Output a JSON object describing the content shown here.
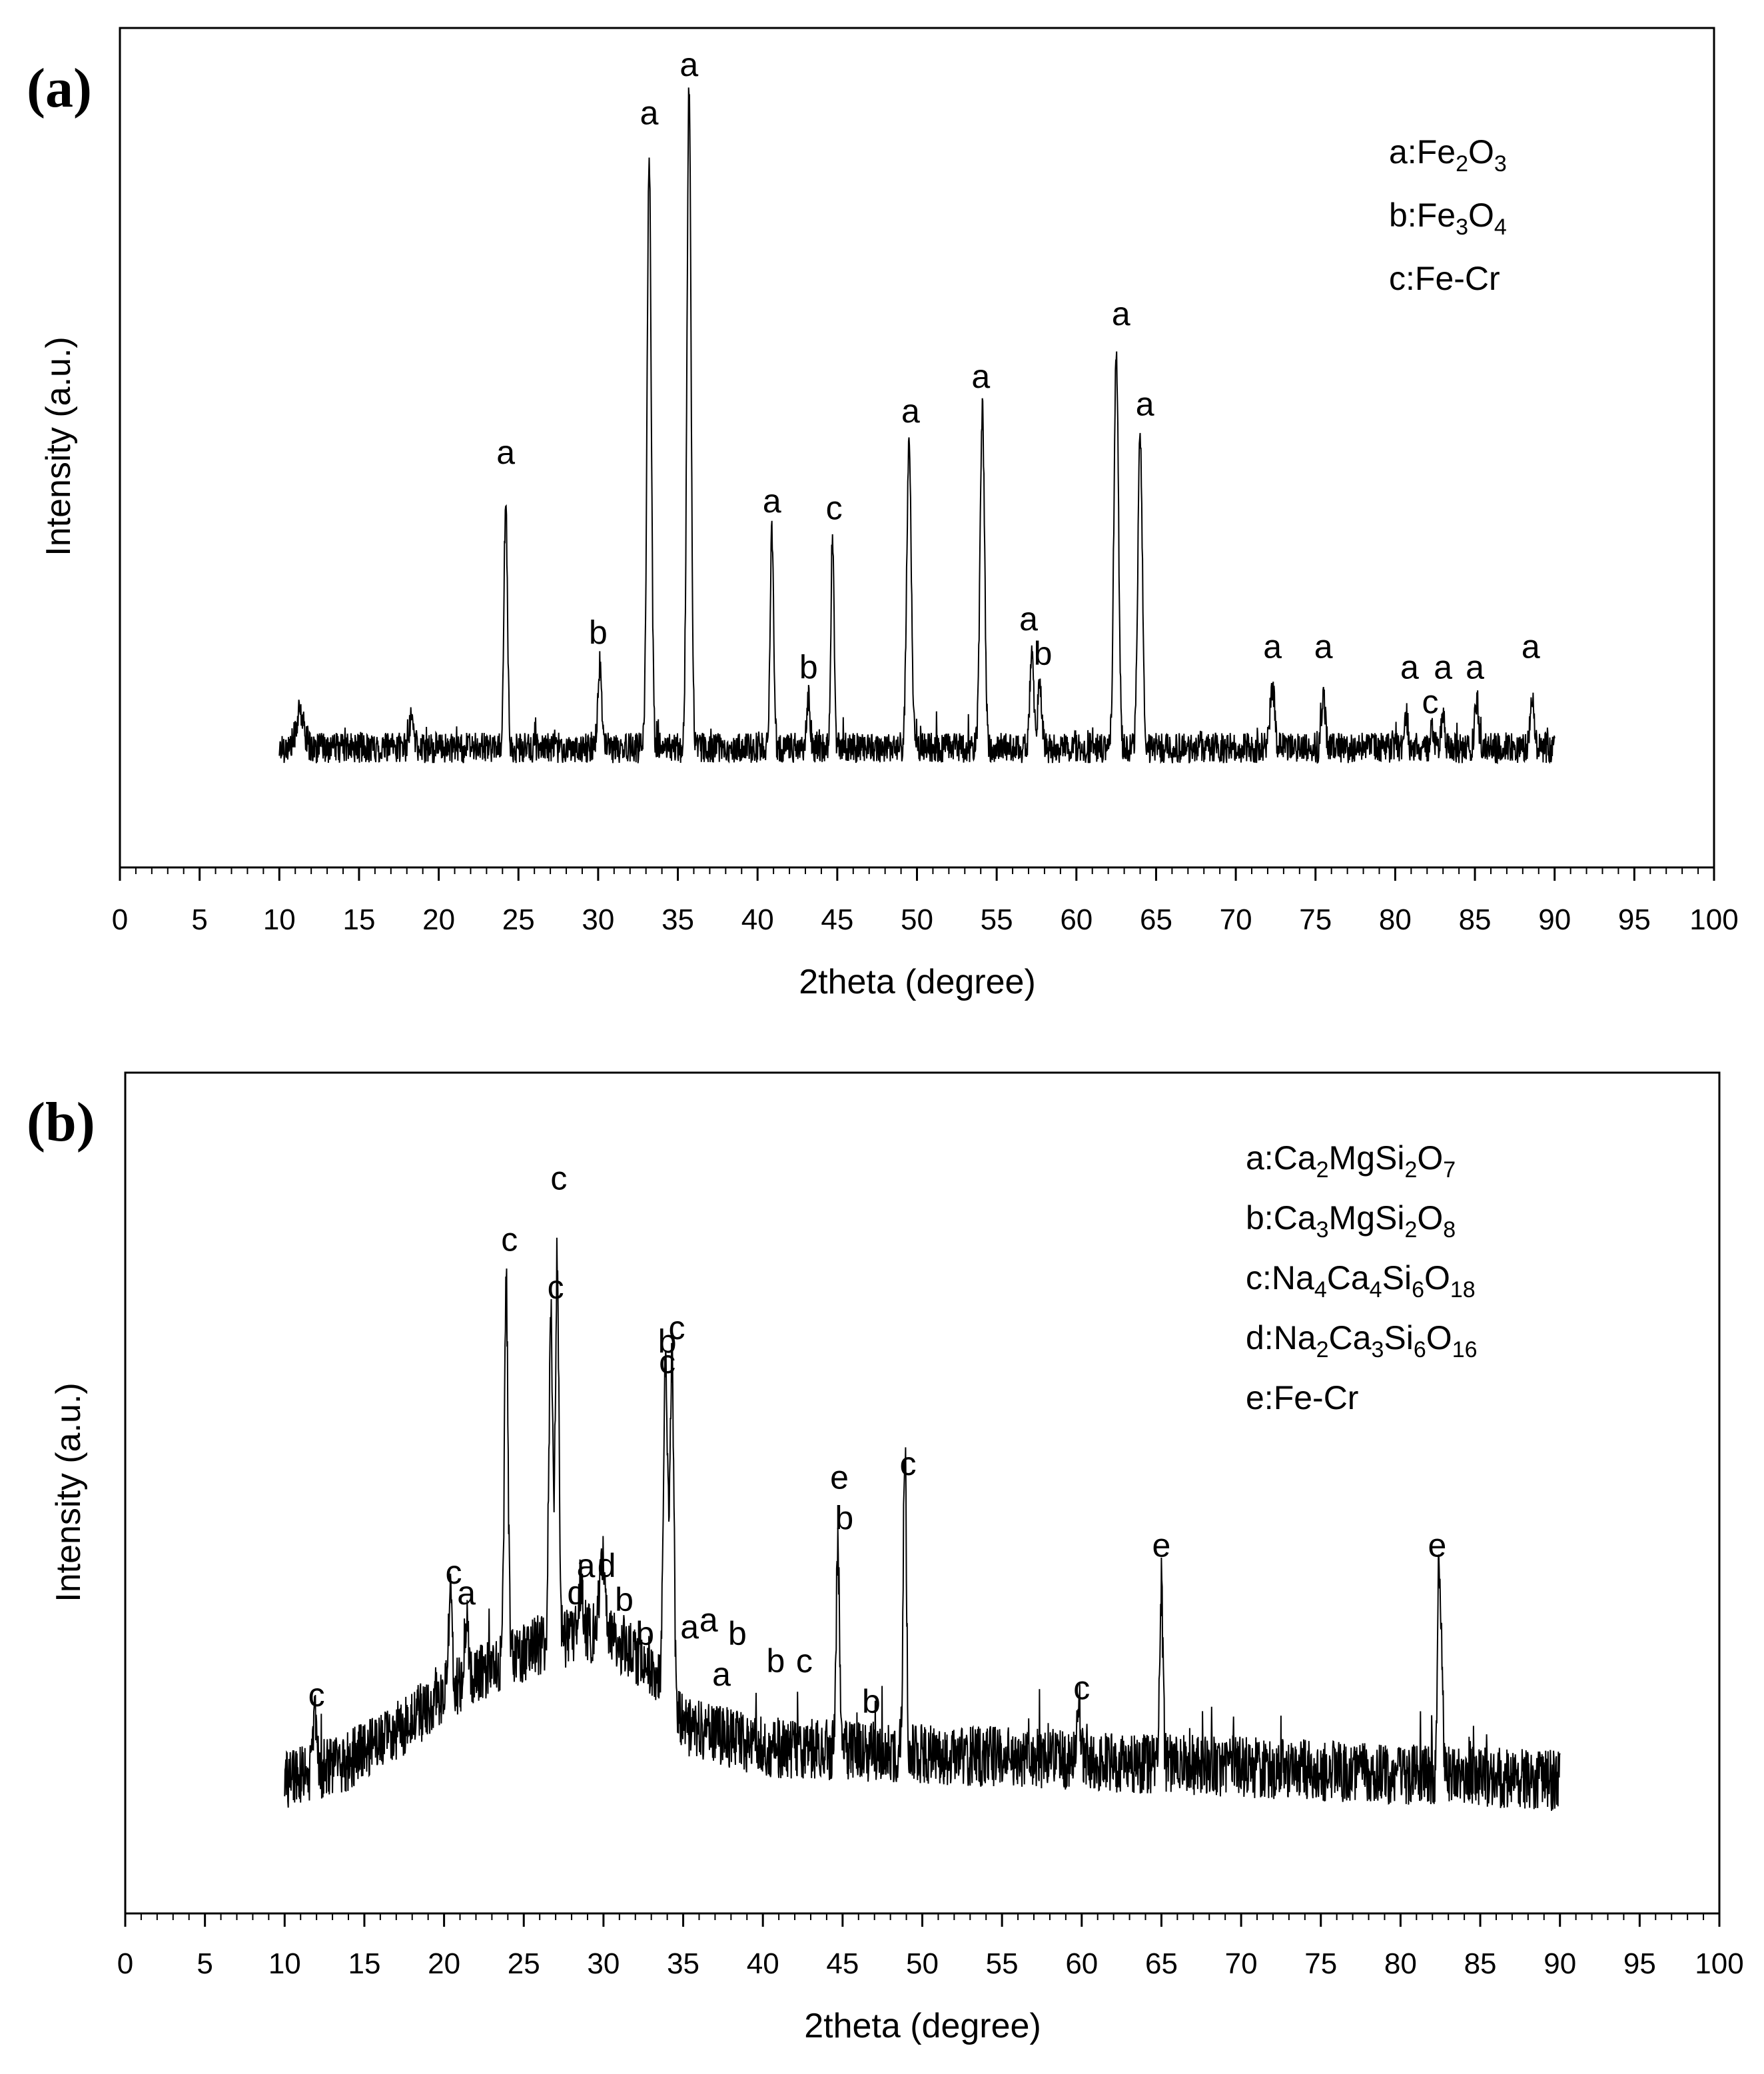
{
  "chart_data": [
    {
      "panel": "(a)",
      "type": "line",
      "xlabel": "2theta (degree)",
      "ylabel": "Intensity (a.u.)",
      "xlim": [
        0,
        100
      ],
      "x_ticks": [
        "0",
        "5",
        "10",
        "15",
        "20",
        "25",
        "30",
        "35",
        "40",
        "45",
        "50",
        "55",
        "60",
        "65",
        "70",
        "75",
        "80",
        "85",
        "90",
        "95",
        "100"
      ],
      "data_range": [
        10,
        90
      ],
      "baseline": 0.06,
      "noise": 0.022,
      "noise_seed": 17,
      "series": [
        {
          "name": "XRD pattern (a)",
          "peaks": [
            {
              "x": 11.3,
              "h": 0.05,
              "w": 0.25
            },
            {
              "x": 18.3,
              "h": 0.04,
              "w": 0.15
            },
            {
              "x": 24.2,
              "h": 0.35,
              "w": 0.11
            },
            {
              "x": 30.1,
              "h": 0.12,
              "w": 0.12
            },
            {
              "x": 33.2,
              "h": 0.86,
              "w": 0.13
            },
            {
              "x": 35.7,
              "h": 0.95,
              "w": 0.13
            },
            {
              "x": 40.9,
              "h": 0.31,
              "w": 0.11
            },
            {
              "x": 43.2,
              "h": 0.07,
              "w": 0.11
            },
            {
              "x": 44.7,
              "h": 0.3,
              "w": 0.1
            },
            {
              "x": 49.5,
              "h": 0.44,
              "w": 0.14
            },
            {
              "x": 54.1,
              "h": 0.49,
              "w": 0.14
            },
            {
              "x": 57.2,
              "h": 0.14,
              "w": 0.12
            },
            {
              "x": 57.7,
              "h": 0.1,
              "w": 0.12
            },
            {
              "x": 62.5,
              "h": 0.58,
              "w": 0.14
            },
            {
              "x": 64.0,
              "h": 0.46,
              "w": 0.14
            },
            {
              "x": 72.3,
              "h": 0.09,
              "w": 0.14
            },
            {
              "x": 75.5,
              "h": 0.07,
              "w": 0.12
            },
            {
              "x": 80.7,
              "h": 0.05,
              "w": 0.1
            },
            {
              "x": 82.3,
              "h": 0.03,
              "w": 0.1
            },
            {
              "x": 83.0,
              "h": 0.05,
              "w": 0.1
            },
            {
              "x": 85.1,
              "h": 0.07,
              "w": 0.12
            },
            {
              "x": 88.6,
              "h": 0.08,
              "w": 0.12
            }
          ]
        }
      ],
      "annotations": [
        {
          "text": "a",
          "x": 24.2,
          "y": 0.47
        },
        {
          "text": "b",
          "x": 30.0,
          "y": 0.21
        },
        {
          "text": "a",
          "x": 33.2,
          "y": 0.96
        },
        {
          "text": "a",
          "x": 35.7,
          "y": 1.03
        },
        {
          "text": "a",
          "x": 40.9,
          "y": 0.4
        },
        {
          "text": "c",
          "x": 44.8,
          "y": 0.39
        },
        {
          "text": "b",
          "x": 43.2,
          "y": 0.16
        },
        {
          "text": "a",
          "x": 49.6,
          "y": 0.53
        },
        {
          "text": "a",
          "x": 54.0,
          "y": 0.58
        },
        {
          "text": "a",
          "x": 57.0,
          "y": 0.23
        },
        {
          "text": "b",
          "x": 57.9,
          "y": 0.18
        },
        {
          "text": "a",
          "x": 62.8,
          "y": 0.67
        },
        {
          "text": "a",
          "x": 64.3,
          "y": 0.54
        },
        {
          "text": "a",
          "x": 72.3,
          "y": 0.19
        },
        {
          "text": "a",
          "x": 75.5,
          "y": 0.19
        },
        {
          "text": "a",
          "x": 80.9,
          "y": 0.16
        },
        {
          "text": "c",
          "x": 82.2,
          "y": 0.11
        },
        {
          "text": "a",
          "x": 83.0,
          "y": 0.16
        },
        {
          "text": "a",
          "x": 85.0,
          "y": 0.16
        },
        {
          "text": "a",
          "x": 88.5,
          "y": 0.19
        }
      ],
      "legend": {
        "position": "top-right",
        "entries": [
          {
            "key": "a:",
            "formula": [
              [
                "Fe",
                ""
              ],
              [
                "2",
                "sub"
              ],
              [
                "O",
                ""
              ],
              [
                "3",
                "sub"
              ]
            ]
          },
          {
            "key": "b:",
            "formula": [
              [
                "Fe",
                ""
              ],
              [
                "3",
                "sub"
              ],
              [
                "O",
                ""
              ],
              [
                "4",
                "sub"
              ]
            ]
          },
          {
            "key": "c:",
            "formula": [
              [
                "Fe-Cr",
                ""
              ]
            ]
          }
        ]
      }
    },
    {
      "panel": "(b)",
      "type": "line",
      "xlabel": "2theta (degree)",
      "ylabel": "Intensity (a.u.)",
      "xlim": [
        0,
        100
      ],
      "x_ticks": [
        "0",
        "5",
        "10",
        "15",
        "20",
        "25",
        "30",
        "35",
        "40",
        "45",
        "50",
        "55",
        "60",
        "65",
        "70",
        "75",
        "80",
        "85",
        "90",
        "95",
        "100"
      ],
      "data_range": [
        10,
        90
      ],
      "background": [
        [
          10,
          0.1
        ],
        [
          14,
          0.13
        ],
        [
          18,
          0.19
        ],
        [
          22,
          0.26
        ],
        [
          26,
          0.3
        ],
        [
          30,
          0.32
        ],
        [
          33,
          0.27
        ],
        [
          35,
          0.18
        ],
        [
          40,
          0.15
        ],
        [
          50,
          0.14
        ],
        [
          60,
          0.13
        ],
        [
          70,
          0.12
        ],
        [
          80,
          0.11
        ],
        [
          90,
          0.1
        ]
      ],
      "noise": 0.045,
      "noise_seed": 29,
      "series": [
        {
          "name": "XRD pattern (b)",
          "peaks": [
            {
              "x": 11.9,
              "h": 0.1,
              "w": 0.1
            },
            {
              "x": 20.4,
              "h": 0.14,
              "w": 0.12
            },
            {
              "x": 21.4,
              "h": 0.09,
              "w": 0.12
            },
            {
              "x": 23.9,
              "h": 0.55,
              "w": 0.11
            },
            {
              "x": 26.7,
              "h": 0.47,
              "w": 0.12
            },
            {
              "x": 27.1,
              "h": 0.56,
              "w": 0.11
            },
            {
              "x": 28.6,
              "h": 0.08,
              "w": 0.14
            },
            {
              "x": 29.9,
              "h": 0.12,
              "w": 0.14
            },
            {
              "x": 33.9,
              "h": 0.48,
              "w": 0.13
            },
            {
              "x": 34.3,
              "h": 0.5,
              "w": 0.12
            },
            {
              "x": 44.7,
              "h": 0.3,
              "w": 0.1
            },
            {
              "x": 48.9,
              "h": 0.46,
              "w": 0.1
            },
            {
              "x": 59.8,
              "h": 0.1,
              "w": 0.1
            },
            {
              "x": 65.0,
              "h": 0.26,
              "w": 0.1
            },
            {
              "x": 82.4,
              "h": 0.29,
              "w": 0.09
            },
            {
              "x": 82.6,
              "h": 0.15,
              "w": 0.09
            }
          ]
        }
      ],
      "annotations": [
        {
          "text": "c",
          "x": 12.0,
          "y": 0.21
        },
        {
          "text": "c",
          "x": 20.6,
          "y": 0.39
        },
        {
          "text": "a",
          "x": 21.4,
          "y": 0.36
        },
        {
          "text": "c",
          "x": 24.1,
          "y": 0.88
        },
        {
          "text": "c",
          "x": 27.0,
          "y": 0.81
        },
        {
          "text": "c",
          "x": 27.2,
          "y": 0.97
        },
        {
          "text": "a",
          "x": 28.9,
          "y": 0.4
        },
        {
          "text": "d",
          "x": 30.2,
          "y": 0.4
        },
        {
          "text": "d",
          "x": 28.3,
          "y": 0.36
        },
        {
          "text": "b",
          "x": 31.3,
          "y": 0.35
        },
        {
          "text": "b",
          "x": 32.6,
          "y": 0.3
        },
        {
          "text": "b",
          "x": 34.0,
          "y": 0.73
        },
        {
          "text": "c",
          "x": 34.0,
          "y": 0.7
        },
        {
          "text": "c",
          "x": 34.6,
          "y": 0.75
        },
        {
          "text": "a",
          "x": 35.4,
          "y": 0.31
        },
        {
          "text": "a",
          "x": 36.6,
          "y": 0.32
        },
        {
          "text": "a",
          "x": 37.4,
          "y": 0.24
        },
        {
          "text": "b",
          "x": 38.4,
          "y": 0.3
        },
        {
          "text": "b",
          "x": 40.8,
          "y": 0.26
        },
        {
          "text": "c",
          "x": 42.6,
          "y": 0.26
        },
        {
          "text": "b",
          "x": 46.8,
          "y": 0.2
        },
        {
          "text": "e",
          "x": 44.8,
          "y": 0.53
        },
        {
          "text": "b",
          "x": 45.1,
          "y": 0.47
        },
        {
          "text": "c",
          "x": 49.1,
          "y": 0.55
        },
        {
          "text": "c",
          "x": 60.0,
          "y": 0.22
        },
        {
          "text": "e",
          "x": 65.0,
          "y": 0.43
        },
        {
          "text": "e",
          "x": 82.3,
          "y": 0.43
        }
      ],
      "legend": {
        "position": "top-right",
        "entries": [
          {
            "key": "a:",
            "formula": [
              [
                "Ca",
                ""
              ],
              [
                "2",
                "sub"
              ],
              [
                "MgSi",
                ""
              ],
              [
                "2",
                "sub"
              ],
              [
                "O",
                ""
              ],
              [
                "7",
                "sub"
              ]
            ]
          },
          {
            "key": "b:",
            "formula": [
              [
                "Ca",
                ""
              ],
              [
                "3",
                "sub"
              ],
              [
                "MgSi",
                ""
              ],
              [
                "2",
                "sub"
              ],
              [
                "O",
                ""
              ],
              [
                "8",
                "sub"
              ]
            ]
          },
          {
            "key": "c:",
            "formula": [
              [
                "Na",
                ""
              ],
              [
                "4",
                "sub"
              ],
              [
                "Ca",
                ""
              ],
              [
                "4",
                "sub"
              ],
              [
                "Si",
                ""
              ],
              [
                "6",
                "sub"
              ],
              [
                "O",
                ""
              ],
              [
                "18",
                "sub"
              ]
            ]
          },
          {
            "key": "d:",
            "formula": [
              [
                "Na",
                ""
              ],
              [
                "2",
                "sub"
              ],
              [
                "Ca",
                ""
              ],
              [
                "3",
                "sub"
              ],
              [
                "Si",
                ""
              ],
              [
                "6",
                "sub"
              ],
              [
                "O",
                ""
              ],
              [
                "16",
                "sub"
              ]
            ]
          },
          {
            "key": "e:",
            "formula": [
              [
                "Fe-Cr",
                ""
              ]
            ]
          }
        ]
      }
    }
  ]
}
